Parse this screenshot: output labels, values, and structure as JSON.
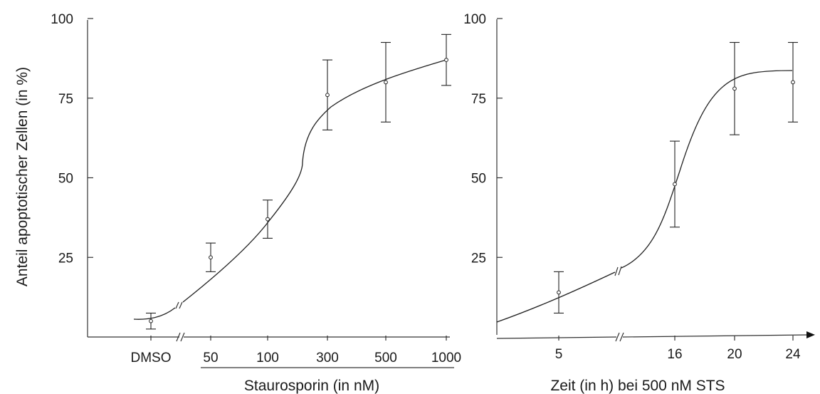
{
  "chart_data": [
    {
      "type": "scatter",
      "ylabel": "Anteil apoptotischer Zellen (in %)",
      "xlabel": "Staurosporin (in nM)",
      "ylim": [
        0,
        100
      ],
      "yticks": [
        25,
        50,
        75,
        100
      ],
      "categories": [
        "DMSO",
        "50",
        "100",
        "300",
        "500",
        "1000"
      ],
      "values": [
        5,
        25,
        37,
        76,
        80,
        87
      ],
      "err": [
        2.5,
        4.5,
        6,
        11,
        12.5,
        8
      ],
      "axis_break": "between DMSO and 50",
      "fit_curve": "sigmoidal"
    },
    {
      "type": "scatter",
      "xlabel": "Zeit (in h) bei 500 nM STS",
      "ylim": [
        0,
        100
      ],
      "yticks": [
        25,
        50,
        75,
        100
      ],
      "categories": [
        "5",
        "16",
        "20",
        "24"
      ],
      "values": [
        14,
        48,
        78,
        80
      ],
      "err": [
        6.5,
        13.5,
        14.5,
        12.5
      ],
      "axis_break": "between 5 and 16",
      "fit_curve": "sigmoidal"
    }
  ]
}
